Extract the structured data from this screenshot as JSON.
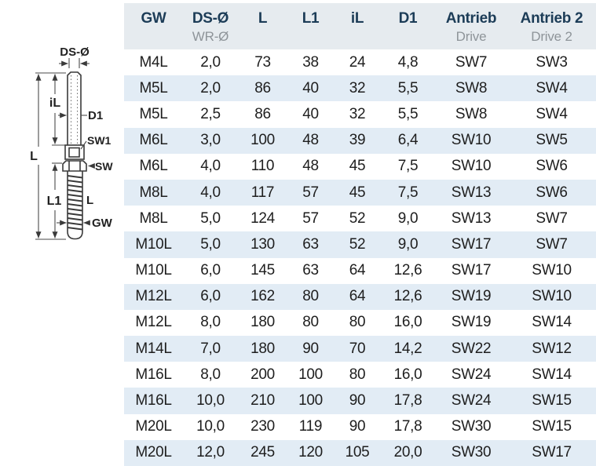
{
  "chart_data": {
    "type": "table",
    "title": "",
    "columns": [
      {
        "label": "GW",
        "sub": ""
      },
      {
        "label": "DS-Ø",
        "sub": "WR-Ø"
      },
      {
        "label": "L",
        "sub": ""
      },
      {
        "label": "L1",
        "sub": ""
      },
      {
        "label": "iL",
        "sub": ""
      },
      {
        "label": "D1",
        "sub": ""
      },
      {
        "label": "Antrieb",
        "sub": "Drive"
      },
      {
        "label": "Antrieb 2",
        "sub": "Drive 2"
      }
    ],
    "rows": [
      [
        "M4L",
        "2,0",
        "73",
        "38",
        "24",
        "4,8",
        "SW7",
        "SW3"
      ],
      [
        "M5L",
        "2,0",
        "86",
        "40",
        "32",
        "5,5",
        "SW8",
        "SW4"
      ],
      [
        "M5L",
        "2,5",
        "86",
        "40",
        "32",
        "5,5",
        "SW8",
        "SW4"
      ],
      [
        "M6L",
        "3,0",
        "100",
        "48",
        "39",
        "6,4",
        "SW10",
        "SW5"
      ],
      [
        "M6L",
        "4,0",
        "110",
        "48",
        "45",
        "7,5",
        "SW10",
        "SW6"
      ],
      [
        "M8L",
        "4,0",
        "117",
        "57",
        "45",
        "7,5",
        "SW13",
        "SW6"
      ],
      [
        "M8L",
        "5,0",
        "124",
        "57",
        "52",
        "9,0",
        "SW13",
        "SW7"
      ],
      [
        "M10L",
        "5,0",
        "130",
        "63",
        "52",
        "9,0",
        "SW17",
        "SW7"
      ],
      [
        "M10L",
        "6,0",
        "145",
        "63",
        "64",
        "12,6",
        "SW17",
        "SW10"
      ],
      [
        "M12L",
        "6,0",
        "162",
        "80",
        "64",
        "12,6",
        "SW19",
        "SW10"
      ],
      [
        "M12L",
        "8,0",
        "180",
        "80",
        "80",
        "16,0",
        "SW19",
        "SW14"
      ],
      [
        "M14L",
        "7,0",
        "180",
        "90",
        "70",
        "14,2",
        "SW22",
        "SW12"
      ],
      [
        "M16L",
        "8,0",
        "200",
        "100",
        "80",
        "16,0",
        "SW24",
        "SW14"
      ],
      [
        "M16L",
        "10,0",
        "210",
        "100",
        "90",
        "17,8",
        "SW24",
        "SW15"
      ],
      [
        "M20L",
        "10,0",
        "230",
        "119",
        "90",
        "17,8",
        "SW30",
        "SW15"
      ],
      [
        "M20L",
        "12,0",
        "245",
        "120",
        "105",
        "20,0",
        "SW30",
        "SW17"
      ]
    ]
  },
  "diagram": {
    "labels": {
      "ds_diameter": "DS-Ø",
      "inner_length": "iL",
      "d1": "D1",
      "sw1": "SW1",
      "sw": "SW",
      "total_length": "L",
      "l1": "L1",
      "thread_l": "L",
      "thread_gw": "GW"
    }
  },
  "colors": {
    "header_bg": "#e6ebef",
    "stripe_bg": "#e2ecf5",
    "header_text": "#1c3c57",
    "sub_text": "#8e9499",
    "body_text": "#1e1e1e"
  }
}
